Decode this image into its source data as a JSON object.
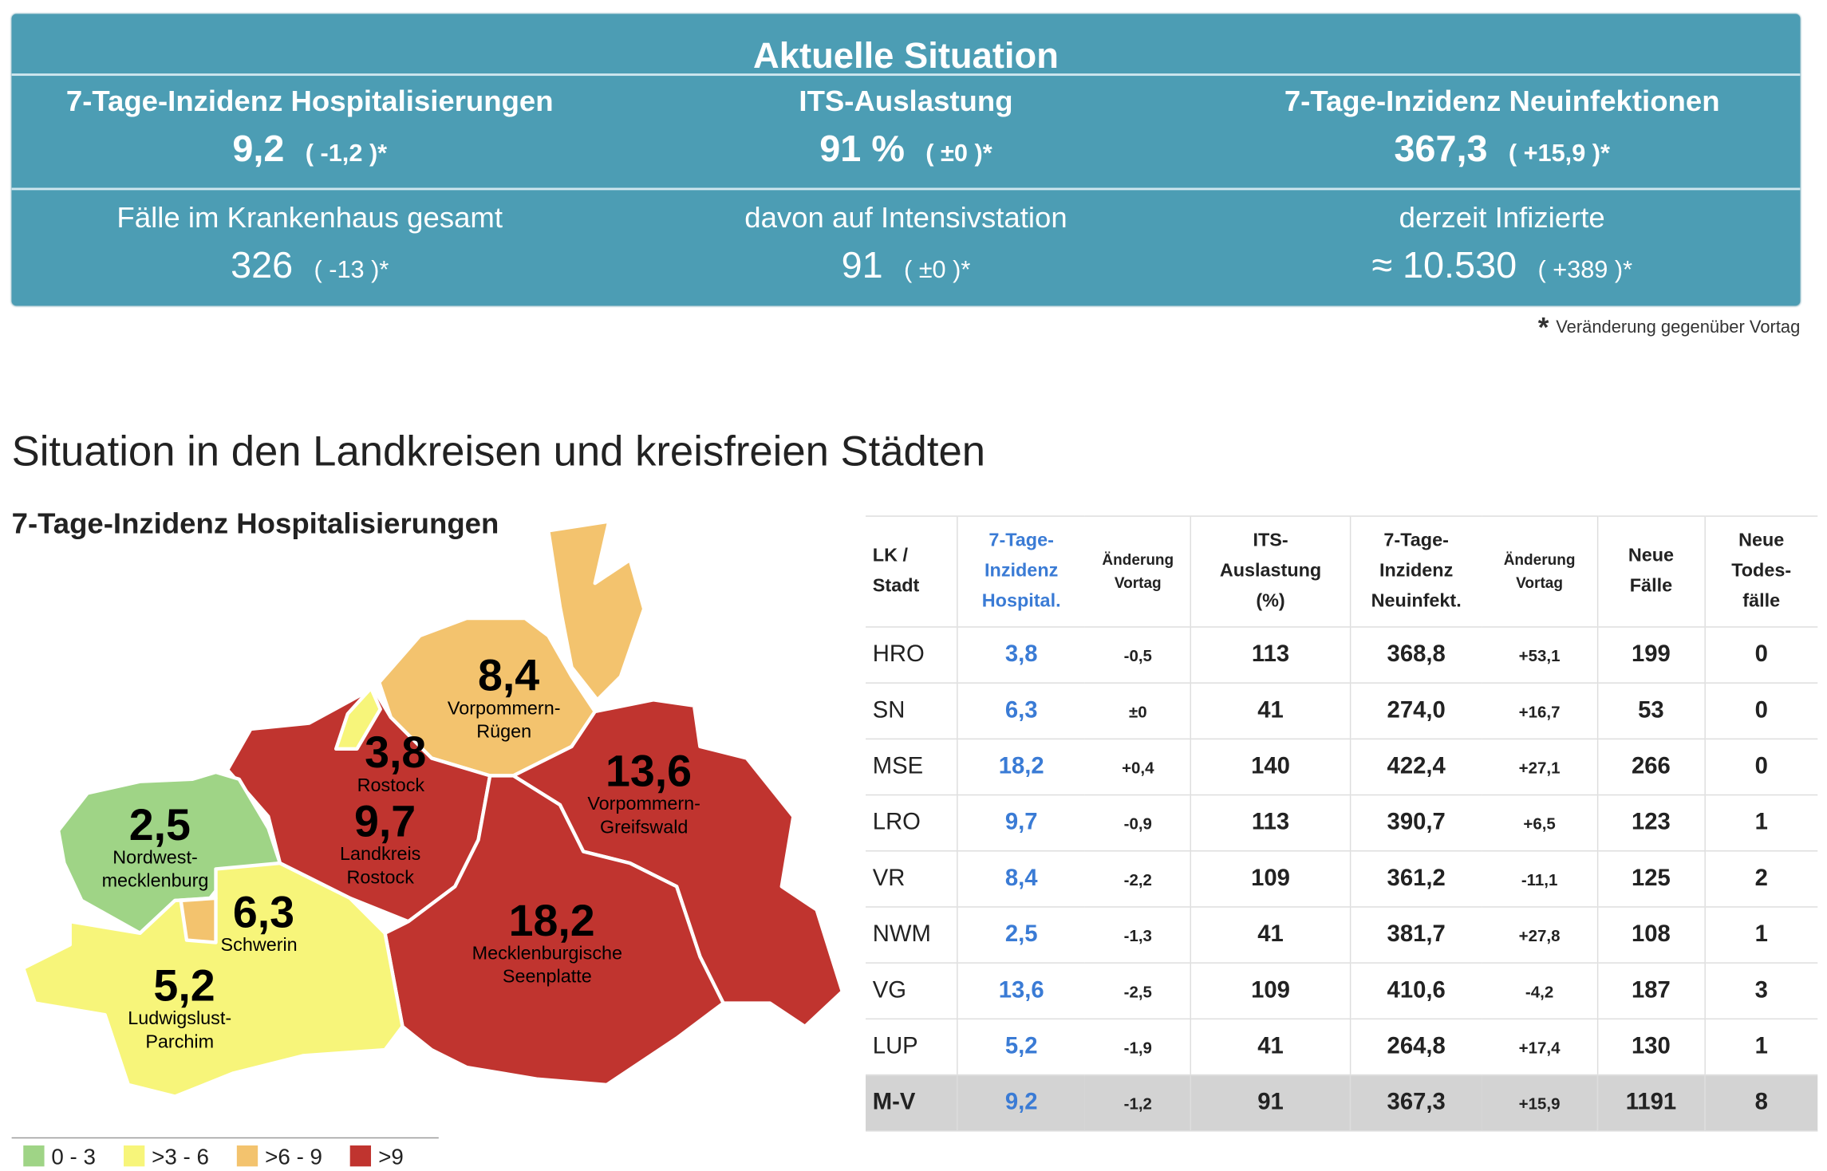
{
  "summary": {
    "title": "Aktuelle Situation",
    "top": [
      {
        "label": "7-Tage-Inzidenz Hospitalisierungen",
        "value": "9,2",
        "change": "( -1,2 )*"
      },
      {
        "label": "ITS-Auslastung",
        "value": "91 %",
        "change": "( ±0 )*"
      },
      {
        "label": "7-Tage-Inzidenz Neuinfektionen",
        "value": "367,3",
        "change": "( +15,9 )*"
      }
    ],
    "bottom": [
      {
        "label": "Fälle im Krankenhaus gesamt",
        "value": "326",
        "change": "( -13 )*"
      },
      {
        "label": "davon auf Intensivstation",
        "value": "91",
        "change": "( ±0 )*"
      },
      {
        "label": "derzeit Infizierte",
        "value": "≈ 10.530",
        "change": "( +389 )*"
      }
    ]
  },
  "footnote": {
    "mark": "*",
    "text": "Veränderung gegenüber Vortag"
  },
  "heading": "Situation in den Landkreisen und kreisfreien Städten",
  "map": {
    "title": "7-Tage-Inzidenz Hospitalisierungen",
    "regions": [
      {
        "value": "8,4",
        "name_lines": [
          "Vorpommern-",
          "Rügen"
        ],
        "color": "#f3c36e"
      },
      {
        "value": "3,8",
        "name_lines": [
          "Rostock"
        ],
        "color": "#f7f57a"
      },
      {
        "value": "9,7",
        "name_lines": [
          "Landkreis",
          "Rostock"
        ],
        "color": "#c0342f"
      },
      {
        "value": "13,6",
        "name_lines": [
          "Vorpommern-",
          "Greifswald"
        ],
        "color": "#c0342f"
      },
      {
        "value": "2,5",
        "name_lines": [
          "Nordwest-",
          "mecklenburg"
        ],
        "color": "#9fd486"
      },
      {
        "value": "6,3",
        "name_lines": [
          "Schwerin"
        ],
        "color": "#f3c36e"
      },
      {
        "value": "18,2",
        "name_lines": [
          "Mecklenburgische",
          "Seenplatte"
        ],
        "color": "#c0342f"
      },
      {
        "value": "5,2",
        "name_lines": [
          "Ludwigslust-",
          "Parchim"
        ],
        "color": "#f7f57a"
      }
    ],
    "legend": [
      {
        "label": "0 - 3",
        "color": "#9fd486"
      },
      {
        "label": ">3 - 6",
        "color": "#f7f57a"
      },
      {
        "label": ">6 - 9",
        "color": "#f3c36e"
      },
      {
        "label": ">9",
        "color": "#c0342f"
      }
    ]
  },
  "table": {
    "header": [
      [
        "LK /",
        "Stadt"
      ],
      [
        "7-Tage-",
        "Inzidenz",
        "Hospital."
      ],
      [
        "Änderung",
        "Vortag"
      ],
      [
        "ITS-",
        "Auslastung",
        "(%)"
      ],
      [
        "7-Tage-",
        "Inzidenz",
        "Neuinfekt."
      ],
      [
        "Änderung",
        "Vortag"
      ],
      [
        "Neue",
        "Fälle"
      ],
      [
        "Neue",
        "Todes-",
        "fälle"
      ]
    ],
    "rows": [
      [
        "HRO",
        "3,8",
        "-0,5",
        "113",
        "368,8",
        "+53,1",
        "199",
        "0"
      ],
      [
        "SN",
        "6,3",
        "±0",
        "41",
        "274,0",
        "+16,7",
        "53",
        "0"
      ],
      [
        "MSE",
        "18,2",
        "+0,4",
        "140",
        "422,4",
        "+27,1",
        "266",
        "0"
      ],
      [
        "LRO",
        "9,7",
        "-0,9",
        "113",
        "390,7",
        "+6,5",
        "123",
        "1"
      ],
      [
        "VR",
        "8,4",
        "-2,2",
        "109",
        "361,2",
        "-11,1",
        "125",
        "2"
      ],
      [
        "NWM",
        "2,5",
        "-1,3",
        "41",
        "381,7",
        "+27,8",
        "108",
        "1"
      ],
      [
        "VG",
        "13,6",
        "-2,5",
        "109",
        "410,6",
        "-4,2",
        "187",
        "3"
      ],
      [
        "LUP",
        "5,2",
        "-1,9",
        "41",
        "264,8",
        "+17,4",
        "130",
        "1"
      ]
    ],
    "total": [
      "M-V",
      "9,2",
      "-1,2",
      "91",
      "367,3",
      "+15,9",
      "1191",
      "8"
    ]
  }
}
